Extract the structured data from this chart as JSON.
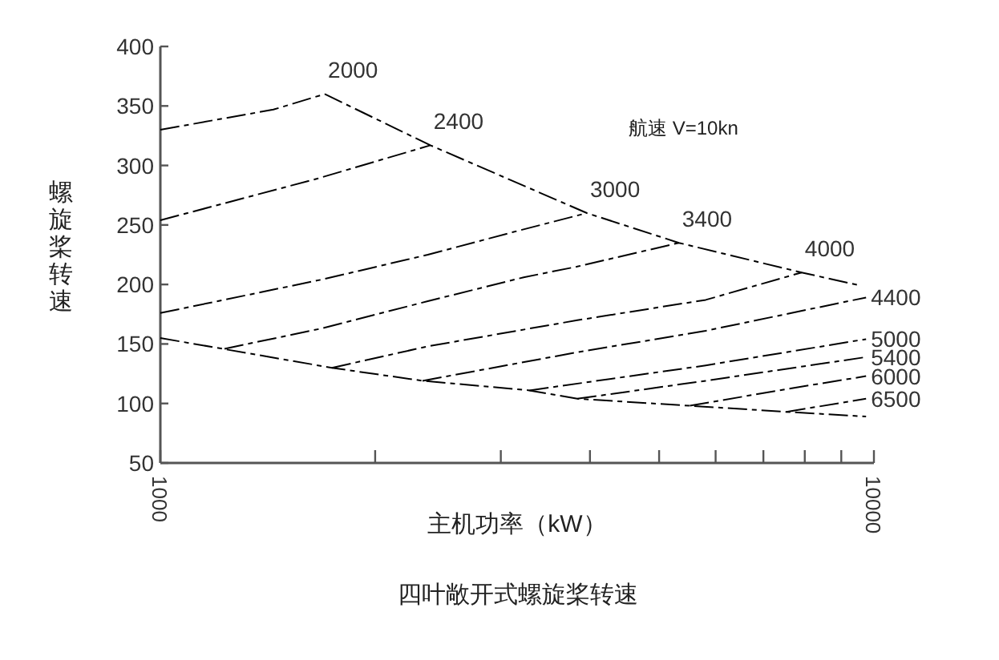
{
  "chart_data": {
    "type": "line",
    "title": "四叶敞开式螺旋桨转速",
    "xlabel": "主机功率（kW）",
    "ylabel": "螺旋桨转速",
    "annotations": [
      "航速 V=10kn"
    ],
    "log": "x",
    "xlim": [
      1000,
      10000
    ],
    "ylim": [
      50,
      400
    ],
    "xticks": [
      1000,
      {
        "value": 2000,
        "label": null
      },
      {
        "value": 3000,
        "label": null
      },
      {
        "value": 4000,
        "label": null
      },
      {
        "value": 5000,
        "label": null
      },
      {
        "value": 6000,
        "label": null
      },
      {
        "value": 7000,
        "label": null
      },
      {
        "value": 8000,
        "label": null
      },
      {
        "value": 9000,
        "label": null
      },
      10000
    ],
    "yticks": [
      50,
      100,
      150,
      200,
      250,
      300,
      350,
      400
    ],
    "line_style": "dashed",
    "grid": false,
    "series": [
      {
        "name": "2000",
        "color": "#000000",
        "x": [
          1000,
          1440,
          1700
        ],
        "values": [
          330,
          347,
          360
        ]
      },
      {
        "name": "2400",
        "color": "#000000",
        "x": [
          1000,
          1660,
          2390
        ],
        "values": [
          254,
          289,
          317
        ]
      },
      {
        "name": "3000",
        "color": "#000000",
        "x": [
          1000,
          1680,
          2370,
          3120,
          3960
        ],
        "values": [
          176,
          204,
          225,
          244,
          260
        ]
      },
      {
        "name": "3400",
        "color": "#000000",
        "x": [
          1230,
          1680,
          2370,
          3230,
          3840,
          5330
        ],
        "values": [
          146,
          163,
          186,
          206,
          215,
          235
        ]
      },
      {
        "name": "4000",
        "color": "#000000",
        "x": [
          1740,
          2370,
          3840,
          5810,
          7920
        ],
        "values": [
          130,
          148,
          170,
          187,
          210
        ]
      },
      {
        "name": "4400",
        "color": "#000000",
        "x": [
          2330,
          3840,
          5810,
          9750
        ],
        "values": [
          119,
          143,
          161,
          189
        ]
      },
      {
        "name": "5000",
        "color": "#000000",
        "x": [
          3290,
          5810,
          9750
        ],
        "values": [
          111,
          132,
          154
        ]
      },
      {
        "name": "5400",
        "color": "#000000",
        "x": [
          3840,
          5810,
          9750
        ],
        "values": [
          104,
          119,
          139
        ]
      },
      {
        "name": "6000",
        "color": "#000000",
        "x": [
          5520,
          7540,
          9750
        ],
        "values": [
          98,
          112,
          123
        ]
      },
      {
        "name": "6500",
        "color": "#000000",
        "x": [
          7540,
          9750
        ],
        "values": [
          93,
          104
        ]
      },
      {
        "color": "#000000",
        "x": [
          1700,
          2390,
          3960,
          5330,
          7920,
          9580
        ],
        "values": [
          360,
          317,
          260,
          235,
          210,
          199
        ]
      },
      {
        "color": "#000000",
        "x": [
          1000,
          1740,
          2330,
          3290,
          3840,
          5520,
          7540,
          9750
        ],
        "values": [
          155,
          130,
          119,
          111,
          104,
          98,
          93,
          89
        ]
      }
    ]
  }
}
